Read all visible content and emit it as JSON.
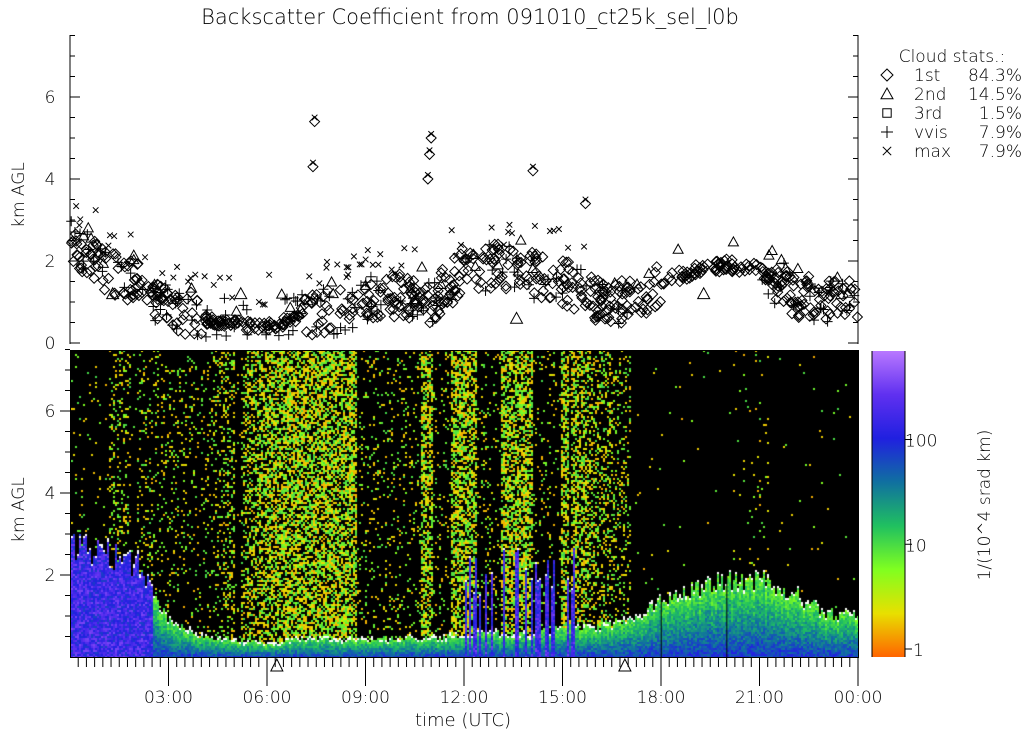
{
  "title": "Backscatter Coefficient from 091010_ct25k_sel_l0b",
  "chart_data": [
    {
      "type": "scatter",
      "panel": "cloud-base",
      "ylabel": "km AGL",
      "ylim": [
        0,
        7.5
      ],
      "yticks": [
        "0",
        "2",
        "4",
        "6"
      ],
      "xlim_hours": [
        0,
        24
      ],
      "legend": {
        "title": "Cloud stats.:",
        "placement": "right",
        "entries": [
          {
            "symbol": "diamond",
            "label": "1st",
            "value": "84.3%"
          },
          {
            "symbol": "triangle",
            "label": "2nd",
            "value": "14.5%"
          },
          {
            "symbol": "square",
            "label": "3rd",
            "value": "1.5%"
          },
          {
            "symbol": "plus",
            "label": "vvis",
            "value": "7.9%"
          },
          {
            "symbol": "cross",
            "label": "max",
            "value": "7.9%"
          }
        ]
      },
      "first_cloud_base_hourly_km": [
        2.5,
        1.8,
        1.5,
        0.9,
        0.6,
        0.45,
        0.4,
        0.6,
        0.8,
        1.0,
        1.2,
        1.0,
        1.8,
        1.9,
        1.7,
        1.5,
        1.1,
        1.0,
        1.5,
        1.75,
        1.9,
        1.8,
        1.2,
        1.0
      ],
      "isolated_high_clouds_km": [
        [
          7.4,
          4.3
        ],
        [
          7.45,
          5.4
        ],
        [
          10.9,
          4.0
        ],
        [
          10.95,
          4.6
        ],
        [
          11.0,
          5.0
        ],
        [
          14.1,
          4.2
        ],
        [
          15.7,
          3.4
        ]
      ]
    },
    {
      "type": "heatmap",
      "panel": "backscatter",
      "xlabel": "time (UTC)",
      "ylabel": "km AGL",
      "ylim": [
        0,
        7.5
      ],
      "yticks": [
        "2",
        "4",
        "6"
      ],
      "xticks": [
        "03:00",
        "06:00",
        "09:00",
        "12:00",
        "15:00",
        "18:00",
        "21:00",
        "00:00"
      ],
      "xlim_hours": [
        0,
        24
      ],
      "colorbar": {
        "label": "1/(10^4 srad km)",
        "scale": "log",
        "ticks": [
          "1",
          "10",
          "100"
        ],
        "range": [
          1,
          700
        ],
        "colors": [
          "#ff6400",
          "#e8e000",
          "#80ff20",
          "#20c060",
          "#1070a0",
          "#2020e0",
          "#6030f0",
          "#b878ff"
        ]
      },
      "boundary_layer_top_hourly_km": [
        2.7,
        2.6,
        2.3,
        0.9,
        0.55,
        0.45,
        0.35,
        0.5,
        0.5,
        0.45,
        0.5,
        0.5,
        0.6,
        0.65,
        0.6,
        0.7,
        0.8,
        0.9,
        1.4,
        1.7,
        1.9,
        1.9,
        1.6,
        1.1
      ],
      "noise_density_hourly": [
        0.45,
        0.2,
        0.15,
        0.12,
        0.08,
        0.3,
        0.55,
        0.75,
        0.8,
        0.82,
        0.8,
        0.8,
        0.8,
        0.78,
        0.75,
        0.65,
        0.35,
        0.15,
        0.04,
        0.03,
        0.03,
        0.04,
        0.05,
        0.06
      ],
      "bottom_axis_markers_hours": [
        6.3,
        16.9
      ]
    }
  ]
}
